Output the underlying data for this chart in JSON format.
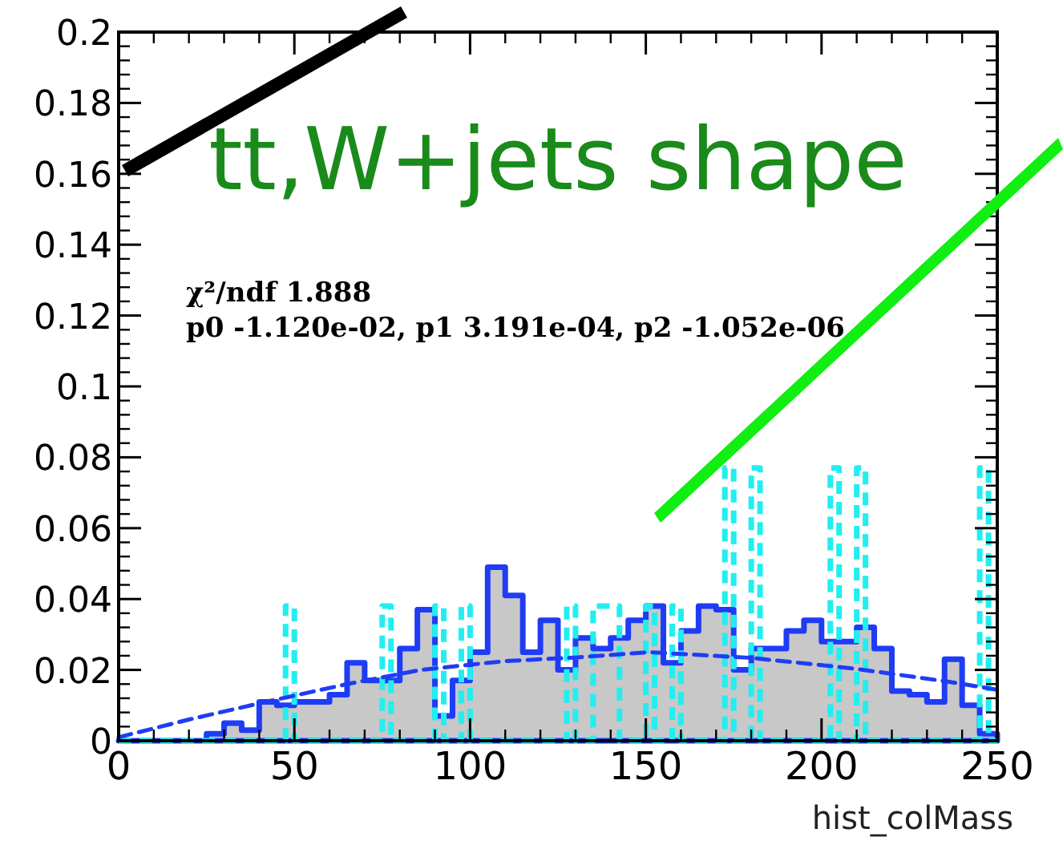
{
  "chart_data": {
    "type": "histogram",
    "title": "tt,W+jets shape",
    "xlabel": "hist_colMass",
    "annotations": [
      "χ²/ndf  1.888",
      "p0  -1.120e-02, p1  3.191e-04, p2  -1.052e-06"
    ],
    "xlim": [
      0,
      250
    ],
    "xticks": [
      0,
      50,
      100,
      150,
      200,
      250
    ],
    "ylim": [
      0,
      0.2
    ],
    "yticks": [
      0,
      0.02,
      0.04,
      0.06,
      0.08,
      0.1,
      0.12,
      0.14,
      0.16,
      0.18,
      0.2
    ],
    "grid": false,
    "series": [
      {
        "color": "#1f3cf5",
        "bins": [
          0,
          5,
          10,
          15,
          20,
          25,
          30,
          35,
          40,
          45,
          50,
          55,
          60,
          65,
          70,
          75,
          80,
          85,
          90,
          95,
          100,
          105,
          110,
          115,
          120,
          125,
          130,
          135,
          140,
          145,
          150,
          155,
          160,
          165,
          170,
          175,
          180,
          185,
          190,
          195,
          200,
          205,
          210,
          215,
          220,
          225,
          230,
          235,
          240,
          245,
          250
        ],
        "values": [
          0,
          0,
          0,
          0,
          0,
          0.002,
          0.005,
          0.003,
          0.011,
          0.01,
          0.011,
          0.011,
          0.013,
          0.022,
          0.017,
          0.017,
          0.026,
          0.037,
          0.007,
          0.017,
          0.025,
          0.049,
          0.041,
          0.025,
          0.034,
          0.02,
          0.029,
          0.026,
          0.029,
          0.034,
          0.038,
          0.022,
          0.031,
          0.038,
          0.037,
          0.02,
          0.026,
          0.026,
          0.031,
          0.034,
          0.028,
          0.028,
          0.032,
          0.026,
          0.014,
          0.013,
          0.011,
          0.023,
          0.01,
          0.002
        ]
      },
      {
        "type": "histogram",
        "color": "#22eef0",
        "line_style": "dashed",
        "bins": [
          0,
          47.5,
          50,
          75,
          77.5,
          90,
          92.5,
          97.5,
          100,
          127.5,
          130,
          135,
          142.5,
          150,
          152.5,
          157.5,
          160,
          172.5,
          175,
          180,
          182.5,
          202.5,
          205,
          210,
          212.5,
          245,
          247.5,
          250
        ],
        "values": [
          0,
          0.038,
          0,
          0.038,
          0,
          0.038,
          0,
          0.038,
          0,
          0.038,
          0,
          0.038,
          0,
          0.038,
          0,
          0.038,
          0,
          0.077,
          0,
          0.077,
          0,
          0.077,
          0,
          0.077,
          0,
          0.077,
          0
        ]
      },
      {
        "type": "line",
        "color": "#1f3cf5",
        "line_style": "dashed",
        "x": [
          0,
          20,
          42,
          65,
          86,
          110,
          130,
          151,
          180,
          209,
          236,
          250
        ],
        "values": [
          0.001,
          0.006,
          0.011,
          0.016,
          0.02,
          0.0225,
          0.0235,
          0.025,
          0.0234,
          0.0204,
          0.0167,
          0.0144
        ]
      }
    ]
  }
}
